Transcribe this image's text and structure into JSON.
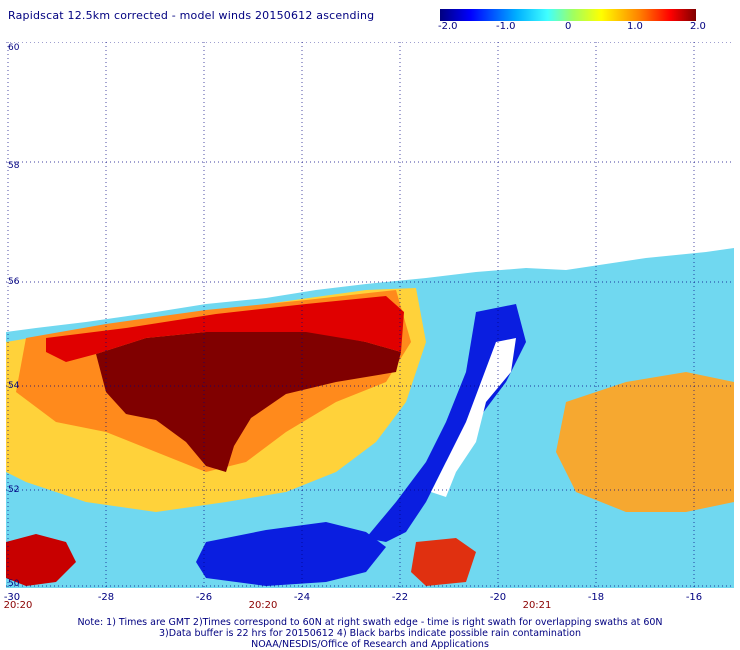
{
  "title": "Rapidscat 12.5km corrected - model winds 20150612 ascending",
  "colorbar": {
    "labels": [
      "-2.0",
      "-1.0",
      "0",
      "1.0",
      "2.0"
    ],
    "colors": [
      "#00007f",
      "#0000ff",
      "#00b0ff",
      "#40ffff",
      "#a0ff60",
      "#ffff00",
      "#ff8000",
      "#ff0000",
      "#7f0000"
    ]
  },
  "map": {
    "lat_labels": [
      "60",
      "58",
      "56",
      "54",
      "52",
      "50"
    ],
    "lon_labels": [
      "-30",
      "-28",
      "-26",
      "-24",
      "-22",
      "-20",
      "-18",
      "-16"
    ],
    "time_labels": [
      "20:20",
      "20:20",
      "20:21"
    ]
  },
  "notes": {
    "line1": "Note: 1) Times are GMT 2)Times correspond to 60N at right swath edge - time is right swath for overlapping swaths at 60N",
    "line2": "3)Data buffer is 22 hrs for 20150612 4) Black barbs indicate possible rain contamination",
    "line3": "NOAA/NESDIS/Office of Research and Applications"
  }
}
